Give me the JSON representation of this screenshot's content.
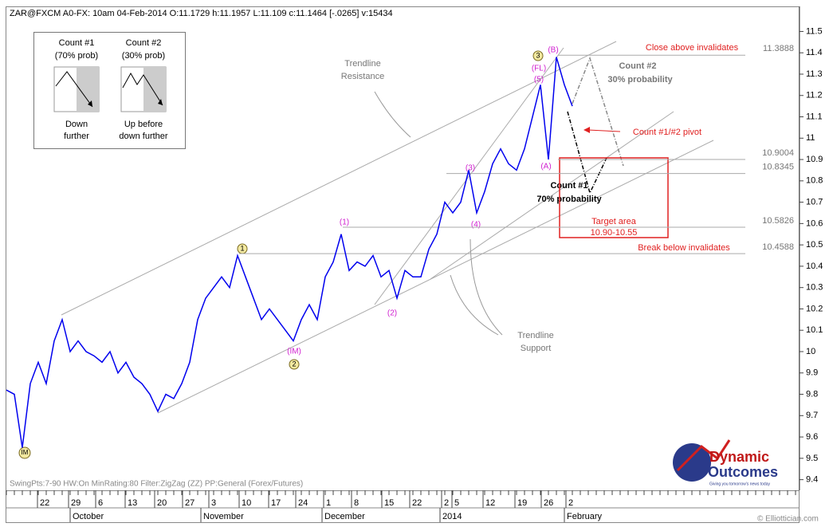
{
  "chart_data": {
    "type": "line",
    "title": "ZAR@FXCM A0-FX:  10am 04-Feb-2014  O:11.1729 h:11.1957 L:11.109 c:11.1464 [-.0265] v:15434",
    "series": [
      {
        "color": "#0000ee",
        "values": [
          9.82,
          9.8,
          9.55,
          9.85,
          9.95,
          9.85,
          10.05,
          10.15,
          10.0,
          10.05,
          10.0,
          9.98,
          9.95,
          10.0,
          9.9,
          9.95,
          9.88,
          9.85,
          9.8,
          9.72,
          9.8,
          9.78,
          9.85,
          9.95,
          10.15,
          10.25,
          10.3,
          10.35,
          10.3,
          10.45,
          10.35,
          10.25,
          10.15,
          10.2,
          10.15,
          10.1,
          10.05,
          10.15,
          10.22,
          10.15,
          10.35,
          10.42,
          10.55,
          10.38,
          10.42,
          10.4,
          10.45,
          10.35,
          10.38,
          10.25,
          10.38,
          10.35,
          10.35,
          10.48,
          10.55,
          10.7,
          10.65,
          10.7,
          10.85,
          10.65,
          10.75,
          10.88,
          10.95,
          10.88,
          10.85,
          10.95,
          11.1,
          11.25,
          10.9,
          11.38,
          11.25,
          11.15
        ]
      }
    ],
    "xlim": [
      0,
      99.5
    ],
    "xticks": [
      {
        "value": 3.9,
        "label": "22"
      },
      {
        "value": 7.8,
        "label": "29"
      },
      {
        "value": 11.2,
        "label": "6"
      },
      {
        "value": 14.9,
        "label": "13"
      },
      {
        "value": 18.6,
        "label": "20"
      },
      {
        "value": 22.1,
        "label": "27"
      },
      {
        "value": 25.4,
        "label": "3"
      },
      {
        "value": 29.2,
        "label": "10"
      },
      {
        "value": 32.9,
        "label": "17"
      },
      {
        "value": 36.3,
        "label": "24"
      },
      {
        "value": 39.8,
        "label": "1"
      },
      {
        "value": 43.3,
        "label": "8"
      },
      {
        "value": 47.1,
        "label": "15"
      },
      {
        "value": 50.6,
        "label": "22"
      },
      {
        "value": 54.6,
        "label": "2"
      },
      {
        "value": 55.9,
        "label": "5"
      },
      {
        "value": 59.8,
        "label": "12"
      },
      {
        "value": 63.8,
        "label": "19"
      },
      {
        "value": 67.1,
        "label": "26"
      },
      {
        "value": 70.2,
        "label": "2"
      }
    ],
    "months": [
      {
        "value": 8,
        "label": "October"
      },
      {
        "value": 24.4,
        "label": "November"
      },
      {
        "value": 39.6,
        "label": "December"
      },
      {
        "value": 54.4,
        "label": "2014"
      },
      {
        "value": 70,
        "label": "February"
      }
    ],
    "ylim": [
      9.35,
      11.61
    ],
    "yticks": [
      9.4,
      9.5,
      9.6,
      9.7,
      9.8,
      9.9,
      10,
      10.1,
      10.2,
      10.3,
      10.4,
      10.5,
      10.6,
      10.7,
      10.8,
      10.9,
      11,
      11.1,
      11.2,
      11.3,
      11.4,
      11.5
    ],
    "levels": [
      11.3888,
      10.9004,
      10.8345,
      10.5826,
      10.4588
    ]
  },
  "annotations": {
    "count1_box": [
      "Count #1",
      "(70% prob)",
      "Down",
      "further"
    ],
    "count2_box": [
      "Count #2",
      "(30% prob)",
      "Up before",
      "down further"
    ],
    "resistance": [
      "Trendline",
      "Resistance"
    ],
    "support": [
      "Trendline",
      "Support"
    ],
    "close_above": "Close above invalidates",
    "count2": [
      "Count #2",
      "30% probability"
    ],
    "pivot": "Count #1/#2 pivot",
    "count1": [
      "Count #1",
      "70% probability"
    ],
    "target": [
      "Target area",
      "10.90-10.55"
    ],
    "break_below": "Break below invalidates",
    "waves": [
      "(B)",
      "(FL)",
      "(5)",
      "(A)",
      "(3)",
      "(4)",
      "(1)",
      "(2)",
      "(IM)"
    ],
    "circled": [
      "3",
      "1",
      "2",
      "IM"
    ],
    "footer": "SwingPts:7-90 HW:On  MinRating:80  Filter:ZigZag (ZZ)  PP:General (Forex/Futures)",
    "copyright": "© Elliottician.com",
    "logo": [
      "Dynamic",
      "Outcomes",
      "Giving you tomorrow's news today"
    ]
  }
}
